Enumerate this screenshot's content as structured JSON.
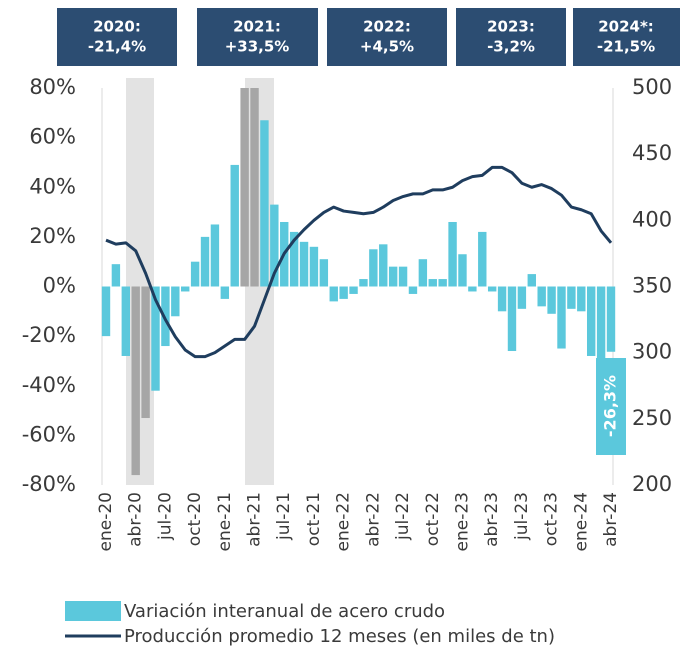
{
  "chart_data": {
    "type": "bar_line",
    "annotations": [
      {
        "year": "2020:",
        "value": "-21,4%"
      },
      {
        "year": "2021:",
        "value": "+33,5%"
      },
      {
        "year": "2022:",
        "value": "+4,5%"
      },
      {
        "year": "2023:",
        "value": "-3,2%"
      },
      {
        "year": "2024*:",
        "value": "-21,5%"
      }
    ],
    "categories": [
      "ene-20",
      null,
      null,
      "abr-20",
      null,
      null,
      "jul-20",
      null,
      null,
      "oct-20",
      null,
      null,
      "ene-21",
      null,
      null,
      "abr-21",
      null,
      null,
      "jul-21",
      null,
      null,
      "oct-21",
      null,
      null,
      "ene-22",
      null,
      null,
      "abr-22",
      null,
      null,
      "jul-22",
      null,
      null,
      "oct-22",
      null,
      null,
      "ene-23",
      null,
      null,
      "abr-23",
      null,
      null,
      "jul-23",
      null,
      null,
      "oct-23",
      null,
      null,
      "ene-24",
      null,
      null,
      "abr-24"
    ],
    "series": [
      {
        "name": "Variación interanual de acero crudo",
        "type": "bar",
        "color": "#5bc8dc",
        "colors": [
          "#5bc8dc",
          "#5bc8dc",
          "#5bc8dc",
          "#a6a6a6",
          "#a6a6a6",
          "#5bc8dc",
          "#5bc8dc",
          "#5bc8dc",
          "#5bc8dc",
          "#5bc8dc",
          "#5bc8dc",
          "#5bc8dc",
          "#5bc8dc",
          "#5bc8dc",
          "#a6a6a6",
          "#a6a6a6",
          "#5bc8dc",
          "#5bc8dc",
          "#5bc8dc",
          "#5bc8dc",
          "#5bc8dc",
          "#5bc8dc",
          "#5bc8dc",
          "#5bc8dc",
          "#5bc8dc",
          "#5bc8dc",
          "#5bc8dc",
          "#5bc8dc",
          "#5bc8dc",
          "#5bc8dc",
          "#5bc8dc",
          "#5bc8dc",
          "#5bc8dc",
          "#5bc8dc",
          "#5bc8dc",
          "#5bc8dc",
          "#5bc8dc",
          "#5bc8dc",
          "#5bc8dc",
          "#5bc8dc",
          "#5bc8dc",
          "#5bc8dc",
          "#5bc8dc",
          "#5bc8dc",
          "#5bc8dc",
          "#5bc8dc",
          "#5bc8dc",
          "#5bc8dc",
          "#5bc8dc",
          "#5bc8dc",
          "#5bc8dc",
          "#5bc8dc"
        ],
        "values": [
          -20,
          9,
          -28,
          -76,
          -53,
          -42,
          -24,
          -12,
          -2,
          10,
          20,
          25,
          -5,
          49,
          80,
          80,
          67,
          33,
          26,
          22,
          18,
          16,
          11,
          -6,
          -5,
          -3,
          3,
          15,
          17,
          8,
          8,
          -3,
          11,
          3,
          3,
          26,
          13,
          -2,
          22,
          -2,
          -10,
          -26,
          -9,
          5,
          -8,
          -11,
          -25,
          -9,
          -10,
          -28,
          -30,
          -26.3
        ],
        "value_labels": [
          null,
          null,
          null,
          null,
          null,
          null,
          null,
          null,
          null,
          null,
          null,
          null,
          null,
          null,
          null,
          null,
          null,
          null,
          null,
          null,
          null,
          null,
          null,
          null,
          null,
          null,
          null,
          null,
          null,
          null,
          null,
          null,
          null,
          null,
          null,
          null,
          null,
          null,
          null,
          null,
          null,
          null,
          null,
          null,
          null,
          null,
          null,
          null,
          null,
          null,
          null,
          "-26,3%"
        ]
      },
      {
        "name": "Producción promedio 12 meses (en miles de tn)",
        "type": "line",
        "axis": "y2",
        "color": "#1f3d5e",
        "values": [
          385,
          382,
          383,
          377,
          360,
          340,
          325,
          312,
          302,
          297,
          297,
          300,
          305,
          310,
          310,
          320,
          340,
          360,
          375,
          385,
          393,
          400,
          406,
          410,
          407,
          406,
          405,
          406,
          410,
          415,
          418,
          420,
          420,
          423,
          423,
          425,
          430,
          433,
          434,
          440,
          440,
          436,
          428,
          425,
          427,
          424,
          419,
          410,
          408,
          405,
          392,
          383
        ]
      }
    ],
    "ylim": [
      -80,
      80
    ],
    "yticks": [
      {
        "value": -80,
        "label": "-80%"
      },
      {
        "value": -60,
        "label": "-60%"
      },
      {
        "value": -40,
        "label": "-40%"
      },
      {
        "value": -20,
        "label": "-20%"
      },
      {
        "value": 0,
        "label": "0%"
      },
      {
        "value": 20,
        "label": "20%"
      },
      {
        "value": 40,
        "label": "40%"
      },
      {
        "value": 60,
        "label": "60%"
      },
      {
        "value": 80,
        "label": "80%"
      }
    ],
    "y2lim": [
      200,
      500
    ],
    "y2ticks": [
      200,
      250,
      300,
      350,
      400,
      450,
      500
    ]
  }
}
